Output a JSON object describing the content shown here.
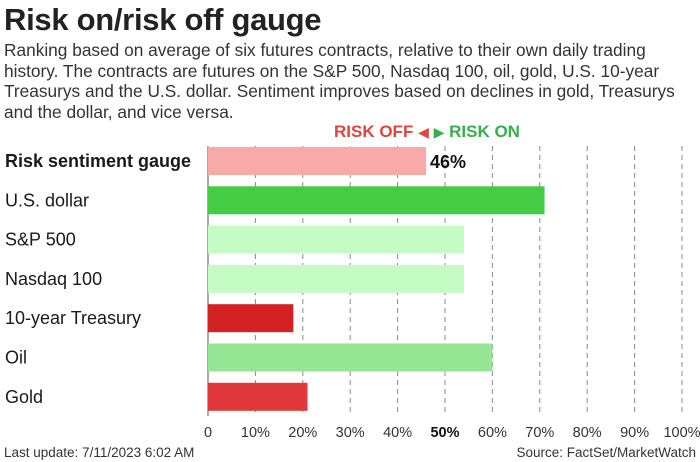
{
  "title": "Risk on/risk off gauge",
  "subtitle": "Ranking based on average of six futures contracts, relative to their own daily trading history. The contracts are futures on the S&P 500, Nasdaq 100, oil, gold, U.S. 10-year Treasurys and the U.S. dollar. Sentiment improves based on declines in gold, Treasurys and the dollar, and vice versa.",
  "legend": {
    "risk_off": "RISK OFF",
    "risk_on": "RISK ON",
    "risk_off_color": "#e0453d",
    "risk_on_color": "#35b04a"
  },
  "footer": {
    "last_update": "Last update: 7/11/2023 6:02 AM",
    "source": "Source: FactSet/MarketWatch"
  },
  "chart_data": {
    "type": "bar",
    "orientation": "horizontal",
    "categories": [
      "Risk sentiment gauge",
      "U.S. dollar",
      "S&P 500",
      "Nasdaq 100",
      "10-year Treasury",
      "Oil",
      "Gold"
    ],
    "values": [
      46,
      71,
      54,
      54,
      18,
      60,
      21
    ],
    "colors": [
      "#f7aaa7",
      "#44cc44",
      "#c4fcc4",
      "#c4fcc4",
      "#d42222",
      "#94e694",
      "#e0383a"
    ],
    "bold_categories": [
      "Risk sentiment gauge"
    ],
    "data_labels": [
      {
        "category": "Risk sentiment gauge",
        "text": "46%"
      }
    ],
    "xlim": [
      0,
      100
    ],
    "xticks": [
      "0",
      "10%",
      "20%",
      "30%",
      "40%",
      "50%",
      "60%",
      "70%",
      "80%",
      "90%",
      "100%"
    ],
    "highlight_tick": "50%",
    "grid": "vertical dashed"
  }
}
